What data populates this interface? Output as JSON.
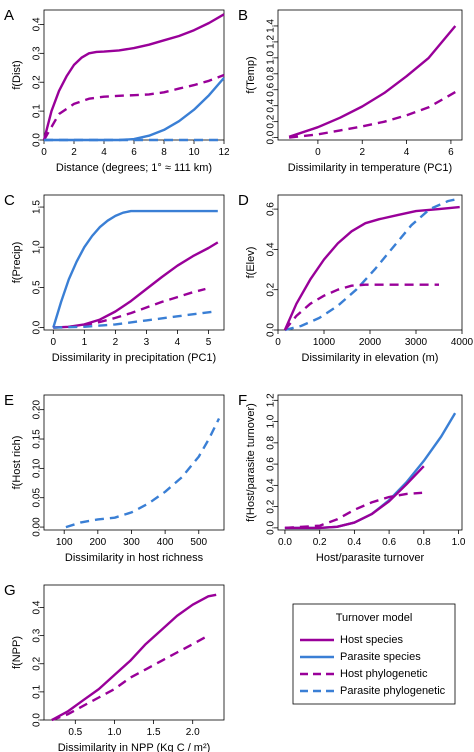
{
  "colors": {
    "host": "#990099",
    "parasite": "#3a7fd5"
  },
  "legend": {
    "title": "Turnover model",
    "entries": [
      {
        "label": "Host species",
        "series": "host_species"
      },
      {
        "label": "Parasite species",
        "series": "parasite_species"
      },
      {
        "label": "Host phylogenetic",
        "series": "host_phylogenetic"
      },
      {
        "label": "Parasite phylogenetic",
        "series": "parasite_phylogenetic"
      }
    ]
  },
  "chart_data": [
    {
      "type": "line",
      "panel": "A",
      "ylabel": "f(Dist)",
      "xlabel": "Distance (degrees; 1° ≈ 111 km)",
      "xlim": [
        0,
        12
      ],
      "ylim": [
        0,
        0.45
      ],
      "xticks": [
        "0",
        "2",
        "4",
        "6",
        "8",
        "10",
        "12"
      ],
      "yticks": [
        "0.0",
        "0.1",
        "0.2",
        "0.3",
        "0.4"
      ],
      "series": [
        {
          "key": "host_species",
          "x": [
            0,
            0.5,
            1,
            1.5,
            2,
            2.5,
            3,
            3.5,
            4,
            5,
            6,
            7,
            8,
            9,
            10,
            11,
            12
          ],
          "y": [
            0,
            0.1,
            0.17,
            0.22,
            0.26,
            0.285,
            0.3,
            0.305,
            0.306,
            0.31,
            0.318,
            0.33,
            0.345,
            0.36,
            0.38,
            0.405,
            0.435
          ]
        },
        {
          "key": "parasite_species",
          "x": [
            0,
            5,
            6,
            7,
            8,
            9,
            10,
            11,
            12
          ],
          "y": [
            0,
            0,
            0.003,
            0.015,
            0.035,
            0.065,
            0.105,
            0.155,
            0.215
          ]
        },
        {
          "key": "host_phylogenetic",
          "x": [
            0,
            1,
            2,
            3,
            4,
            5,
            6,
            7,
            8,
            9,
            10,
            11,
            12
          ],
          "y": [
            0,
            0.09,
            0.125,
            0.143,
            0.15,
            0.153,
            0.155,
            0.158,
            0.165,
            0.178,
            0.19,
            0.205,
            0.225
          ]
        },
        {
          "key": "parasite_phylogenetic",
          "x": [
            0,
            12
          ],
          "y": [
            0,
            0
          ]
        }
      ]
    },
    {
      "type": "line",
      "panel": "B",
      "ylabel": "f(Temp)",
      "xlabel": "Dissimilarity in temperature (PC1)",
      "xlim": [
        -1.8,
        6.5
      ],
      "ylim": [
        -0.03,
        1.6
      ],
      "xticks": [
        "0",
        "2",
        "4",
        "6"
      ],
      "yticks": [
        "0.0",
        "0.2",
        "0.4",
        "0.6",
        "0.8",
        "1.0",
        "1.2",
        "1.4"
      ],
      "series": [
        {
          "key": "host_species",
          "x": [
            -1.3,
            0,
            1,
            2,
            3,
            4,
            5,
            6.2
          ],
          "y": [
            0.01,
            0.13,
            0.25,
            0.39,
            0.56,
            0.77,
            1.0,
            1.4
          ]
        },
        {
          "key": "host_phylogenetic",
          "x": [
            -1.3,
            0,
            1,
            2,
            3,
            4,
            5,
            6.2
          ],
          "y": [
            0,
            0.04,
            0.09,
            0.14,
            0.2,
            0.28,
            0.38,
            0.57
          ]
        }
      ]
    },
    {
      "type": "line",
      "panel": "C",
      "ylabel": "f(Precip)",
      "xlabel": "Dissimilarity in precipitation (PC1)",
      "xlim": [
        -0.3,
        5.5
      ],
      "ylim": [
        -0.03,
        1.65
      ],
      "xticks": [
        "0",
        "1",
        "2",
        "3",
        "4",
        "5"
      ],
      "yticks": [
        "0.0",
        "0.5",
        "1.0",
        "1.5"
      ],
      "series": [
        {
          "key": "parasite_species",
          "x": [
            0,
            0.25,
            0.5,
            0.75,
            1,
            1.25,
            1.5,
            1.75,
            2,
            2.25,
            2.5,
            2.7,
            5.3
          ],
          "y": [
            0,
            0.32,
            0.6,
            0.82,
            1.0,
            1.14,
            1.25,
            1.33,
            1.39,
            1.43,
            1.45,
            1.45,
            1.45
          ]
        },
        {
          "key": "host_species",
          "x": [
            0,
            0.5,
            1,
            1.5,
            2,
            2.5,
            3,
            3.5,
            4,
            4.5,
            5,
            5.3
          ],
          "y": [
            0,
            0.01,
            0.04,
            0.1,
            0.2,
            0.33,
            0.48,
            0.63,
            0.77,
            0.89,
            0.99,
            1.06
          ]
        },
        {
          "key": "host_phylogenetic",
          "x": [
            0,
            0.5,
            1,
            1.5,
            2,
            2.5,
            3,
            3.5,
            4,
            4.5,
            4.9
          ],
          "y": [
            0,
            0.01,
            0.03,
            0.07,
            0.12,
            0.18,
            0.25,
            0.32,
            0.38,
            0.44,
            0.48
          ]
        },
        {
          "key": "parasite_phylogenetic",
          "x": [
            0,
            1,
            2,
            3,
            4,
            5,
            5.2
          ],
          "y": [
            0,
            0.01,
            0.04,
            0.09,
            0.14,
            0.19,
            0.2
          ]
        }
      ]
    },
    {
      "type": "line",
      "panel": "D",
      "ylabel": "f(Elev)",
      "xlabel": "Dissimilarity in elevation (m)",
      "xlim": [
        0,
        4000
      ],
      "ylim": [
        0,
        0.67
      ],
      "xticks": [
        "0",
        "1000",
        "2000",
        "3000",
        "4000"
      ],
      "yticks": [
        "0.0",
        "0.2",
        "0.4",
        "0.6"
      ],
      "series": [
        {
          "key": "host_species",
          "x": [
            150,
            400,
            700,
            1000,
            1300,
            1600,
            1900,
            2200,
            2600,
            3000,
            3500,
            3950
          ],
          "y": [
            0,
            0.13,
            0.25,
            0.35,
            0.43,
            0.49,
            0.53,
            0.55,
            0.57,
            0.59,
            0.6,
            0.61
          ]
        },
        {
          "key": "parasite_phylogenetic",
          "x": [
            150,
            500,
            900,
            1300,
            1700,
            2100,
            2500,
            2900,
            3300,
            3700,
            3900
          ],
          "y": [
            0,
            0.02,
            0.06,
            0.12,
            0.2,
            0.3,
            0.41,
            0.52,
            0.6,
            0.64,
            0.65
          ]
        },
        {
          "key": "host_phylogenetic",
          "x": [
            150,
            400,
            700,
            1000,
            1300,
            1600,
            1900,
            2200,
            2600,
            3000,
            3500
          ],
          "y": [
            0,
            0.07,
            0.13,
            0.17,
            0.2,
            0.22,
            0.225,
            0.225,
            0.225,
            0.225,
            0.225
          ]
        }
      ]
    },
    {
      "type": "line",
      "panel": "E",
      "ylabel": "f(Host rich)",
      "xlabel": "Dissimilarity in host richness",
      "xlim": [
        40,
        575
      ],
      "ylim": [
        -0.005,
        0.225
      ],
      "xticks": [
        "100",
        "200",
        "300",
        "400",
        "500"
      ],
      "yticks": [
        "0.00",
        "0.05",
        "0.10",
        "0.15",
        "0.20"
      ],
      "series": [
        {
          "key": "parasite_phylogenetic",
          "x": [
            105,
            150,
            200,
            250,
            300,
            350,
            400,
            450,
            500,
            530,
            560
          ],
          "y": [
            0,
            0.008,
            0.013,
            0.016,
            0.025,
            0.04,
            0.06,
            0.085,
            0.12,
            0.15,
            0.185
          ]
        }
      ]
    },
    {
      "type": "line",
      "panel": "F",
      "ylabel": "f(Host/parasite turnover)",
      "xlabel": "Host/parasite turnover",
      "xlim": [
        -0.04,
        1.02
      ],
      "ylim": [
        -0.02,
        1.25
      ],
      "xticks": [
        "0.0",
        "0.2",
        "0.4",
        "0.6",
        "0.8",
        "1.0"
      ],
      "yticks": [
        "0.0",
        "0.2",
        "0.4",
        "0.6",
        "0.8",
        "1.0",
        "1.2"
      ],
      "series": [
        {
          "key": "parasite_species",
          "x": [
            0,
            0.2,
            0.3,
            0.4,
            0.5,
            0.6,
            0.7,
            0.8,
            0.9,
            0.98
          ],
          "y": [
            0,
            0,
            0.01,
            0.05,
            0.13,
            0.26,
            0.43,
            0.63,
            0.86,
            1.08
          ]
        },
        {
          "key": "host_species",
          "x": [
            0,
            0.2,
            0.3,
            0.4,
            0.5,
            0.6,
            0.7,
            0.8
          ],
          "y": [
            0,
            0,
            0.01,
            0.05,
            0.13,
            0.25,
            0.41,
            0.58
          ]
        },
        {
          "key": "host_phylogenetic",
          "x": [
            0,
            0.2,
            0.3,
            0.4,
            0.5,
            0.6,
            0.7,
            0.79
          ],
          "y": [
            0,
            0.02,
            0.08,
            0.17,
            0.24,
            0.29,
            0.32,
            0.33
          ]
        }
      ]
    },
    {
      "type": "line",
      "panel": "G",
      "ylabel": "f(NPP)",
      "xlabel": "Dissimilarity in NPP (Kg C / m²)",
      "xlim": [
        0.1,
        2.4
      ],
      "ylim": [
        0,
        0.48
      ],
      "xticks": [
        "0.5",
        "1.0",
        "1.5",
        "2.0"
      ],
      "yticks": [
        "0.0",
        "0.1",
        "0.2",
        "0.3",
        "0.4"
      ],
      "series": [
        {
          "key": "host_species",
          "x": [
            0.2,
            0.4,
            0.6,
            0.8,
            1.0,
            1.2,
            1.4,
            1.6,
            1.8,
            2.0,
            2.2,
            2.3
          ],
          "y": [
            0,
            0.03,
            0.07,
            0.11,
            0.16,
            0.21,
            0.27,
            0.32,
            0.37,
            0.41,
            0.44,
            0.445
          ]
        },
        {
          "key": "host_phylogenetic",
          "x": [
            0.2,
            0.4,
            0.6,
            0.8,
            1.0,
            1.2,
            1.4,
            1.6,
            1.8,
            2.0,
            2.2
          ],
          "y": [
            0,
            0.02,
            0.05,
            0.08,
            0.11,
            0.15,
            0.18,
            0.21,
            0.24,
            0.27,
            0.3
          ]
        }
      ]
    }
  ]
}
